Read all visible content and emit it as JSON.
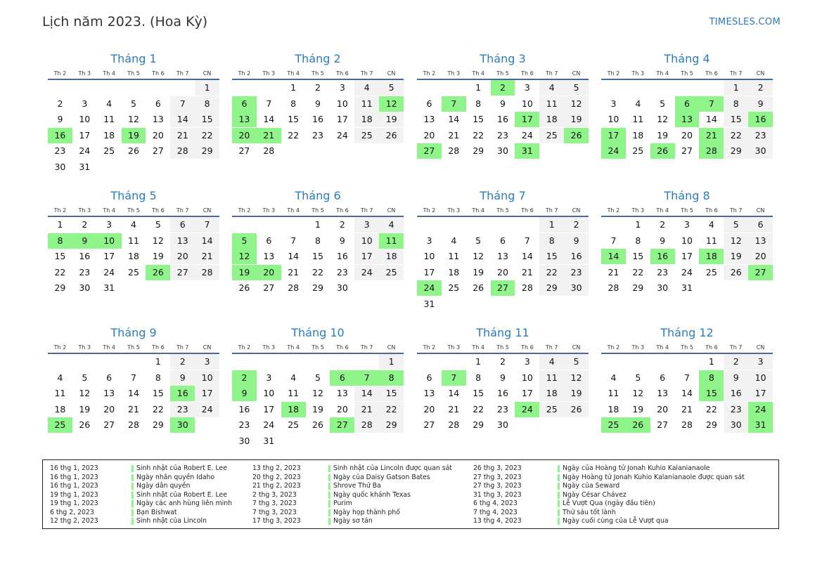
{
  "header": {
    "title": "Lịch năm 2023. (Hoa Kỳ)",
    "brand": "TIMESLES.COM"
  },
  "weekdays": [
    "Th 2",
    "Th 3",
    "Th 4",
    "Th 5",
    "Th 6",
    "Th 7",
    "CN"
  ],
  "months": [
    {
      "name": "Tháng 1",
      "offset": 6,
      "days": 31,
      "holidays": [
        16,
        19
      ]
    },
    {
      "name": "Tháng 2",
      "offset": 2,
      "days": 28,
      "holidays": [
        6,
        12,
        13,
        20,
        21
      ]
    },
    {
      "name": "Tháng 3",
      "offset": 2,
      "days": 31,
      "holidays": [
        2,
        7,
        17,
        26,
        27,
        31
      ]
    },
    {
      "name": "Tháng 4",
      "offset": 5,
      "days": 30,
      "holidays": [
        6,
        7,
        13,
        16,
        17,
        21,
        24,
        26,
        28
      ]
    },
    {
      "name": "Tháng 5",
      "offset": 0,
      "days": 31,
      "holidays": [
        8,
        9,
        10,
        26
      ]
    },
    {
      "name": "Tháng 6",
      "offset": 3,
      "days": 30,
      "holidays": [
        5,
        11,
        12,
        19,
        20
      ]
    },
    {
      "name": "Tháng 7",
      "offset": 5,
      "days": 31,
      "holidays": [
        24,
        27
      ]
    },
    {
      "name": "Tháng 8",
      "offset": 1,
      "days": 31,
      "holidays": [
        14,
        16,
        18,
        27
      ]
    },
    {
      "name": "Tháng 9",
      "offset": 4,
      "days": 30,
      "holidays": [
        16,
        25,
        30
      ]
    },
    {
      "name": "Tháng 10",
      "offset": 6,
      "days": 31,
      "holidays": [
        2,
        6,
        7,
        8,
        9,
        18,
        27
      ]
    },
    {
      "name": "Tháng 11",
      "offset": 2,
      "days": 30,
      "holidays": [
        7,
        24
      ]
    },
    {
      "name": "Tháng 12",
      "offset": 4,
      "days": 31,
      "holidays": [
        8,
        15,
        24,
        25,
        26,
        31
      ]
    }
  ],
  "legend": [
    [
      {
        "date": "16 thg 1, 2023",
        "name": "Sinh nhật của Robert E. Lee"
      },
      {
        "date": "16 thg 1, 2023",
        "name": "Ngày nhân quyền Idaho"
      },
      {
        "date": "16 thg 1, 2023",
        "name": "Ngày dân quyền"
      },
      {
        "date": "19 thg 1, 2023",
        "name": "Sinh nhật của Robert E. Lee"
      },
      {
        "date": "19 thg 1, 2023",
        "name": "Ngày các anh hùng liên minh"
      },
      {
        "date": "6 thg 2, 2023",
        "name": "Bạn Bishwat"
      },
      {
        "date": "12 thg 2, 2023",
        "name": "Sinh nhật của Lincoln"
      }
    ],
    [
      {
        "date": "13 thg 2, 2023",
        "name": "Sinh nhật của Lincoln được quan sát"
      },
      {
        "date": "20 thg 2, 2023",
        "name": "Ngày của Daisy Gatson Bates"
      },
      {
        "date": "21 thg 2, 2023",
        "name": "Shrove Thứ Ba"
      },
      {
        "date": "2 thg 3, 2023",
        "name": "Ngày quốc khánh Texas"
      },
      {
        "date": "7 thg 3, 2023",
        "name": "Purim"
      },
      {
        "date": "7 thg 3, 2023",
        "name": "Ngày họp thành phố"
      },
      {
        "date": "17 thg 3, 2023",
        "name": "Ngày sơ tán"
      }
    ],
    [
      {
        "date": "26 thg 3, 2023",
        "name": "Ngày của Hoàng tử Jonah Kuhio Kalanianaole"
      },
      {
        "date": "27 thg 3, 2023",
        "name": "Ngày Hoàng tử Jonah Kuhio Kalanianaole được quan sát"
      },
      {
        "date": "27 thg 3, 2023",
        "name": "Ngày của Seward"
      },
      {
        "date": "31 thg 3, 2023",
        "name": "Ngày César Chávez"
      },
      {
        "date": "6 thg 4, 2023",
        "name": "Lễ Vượt Qua (ngày đầu tiên)"
      },
      {
        "date": "7 thg 4, 2023",
        "name": "Thứ sáu tốt lành"
      },
      {
        "date": "13 thg 4, 2023",
        "name": "Ngày cuối cùng của Lễ Vượt qua"
      }
    ]
  ]
}
